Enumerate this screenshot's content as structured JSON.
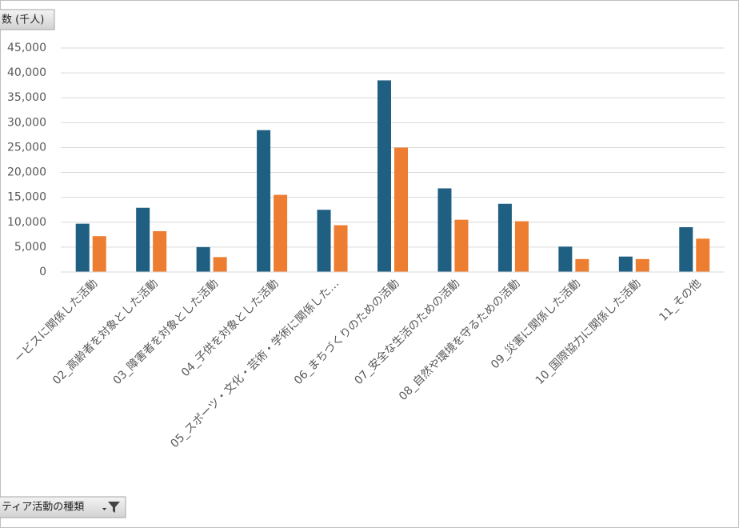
{
  "chart_data": {
    "type": "bar",
    "field_button": "数 (千人)",
    "axis_field_button": "ティア活動の種類",
    "categories": [
      "ービスに関係した活動",
      "02_高齢者を対象とした活動",
      "03_障害者を対象とした活動",
      "04_子供を対象とした活動",
      "05_スポーツ・文化・芸術・学術に関係した…",
      "06_まちづくりのための活動",
      "07_安全な生活のための活動",
      "08_自然や環境を守るための活動",
      "09_災害に関係した活動",
      "10_国際協力に関係した活動",
      "11_その他"
    ],
    "series": [
      {
        "color": "#1f5f82",
        "values": [
          9700,
          12900,
          5000,
          28500,
          12500,
          38500,
          16800,
          13700,
          5100,
          3100,
          9000
        ]
      },
      {
        "color": "#ed7d31",
        "values": [
          7200,
          8200,
          3000,
          15500,
          9400,
          25000,
          10500,
          10200,
          2600,
          2600,
          6700
        ]
      }
    ],
    "ylim": [
      0,
      45000
    ],
    "yticks": [
      0,
      {
        "value": 5000,
        "label": "5,000"
      },
      {
        "value": 10000,
        "label": "10,000"
      },
      {
        "value": 15000,
        "label": "15,000"
      },
      {
        "value": 20000,
        "label": "20,000"
      },
      {
        "value": 25000,
        "label": "25,000"
      },
      {
        "value": 30000,
        "label": "30,000"
      },
      {
        "value": 35000,
        "label": "35,000"
      },
      {
        "value": 40000,
        "label": "40,000"
      },
      {
        "value": 45000,
        "label": "45,000"
      }
    ],
    "grid": true
  }
}
